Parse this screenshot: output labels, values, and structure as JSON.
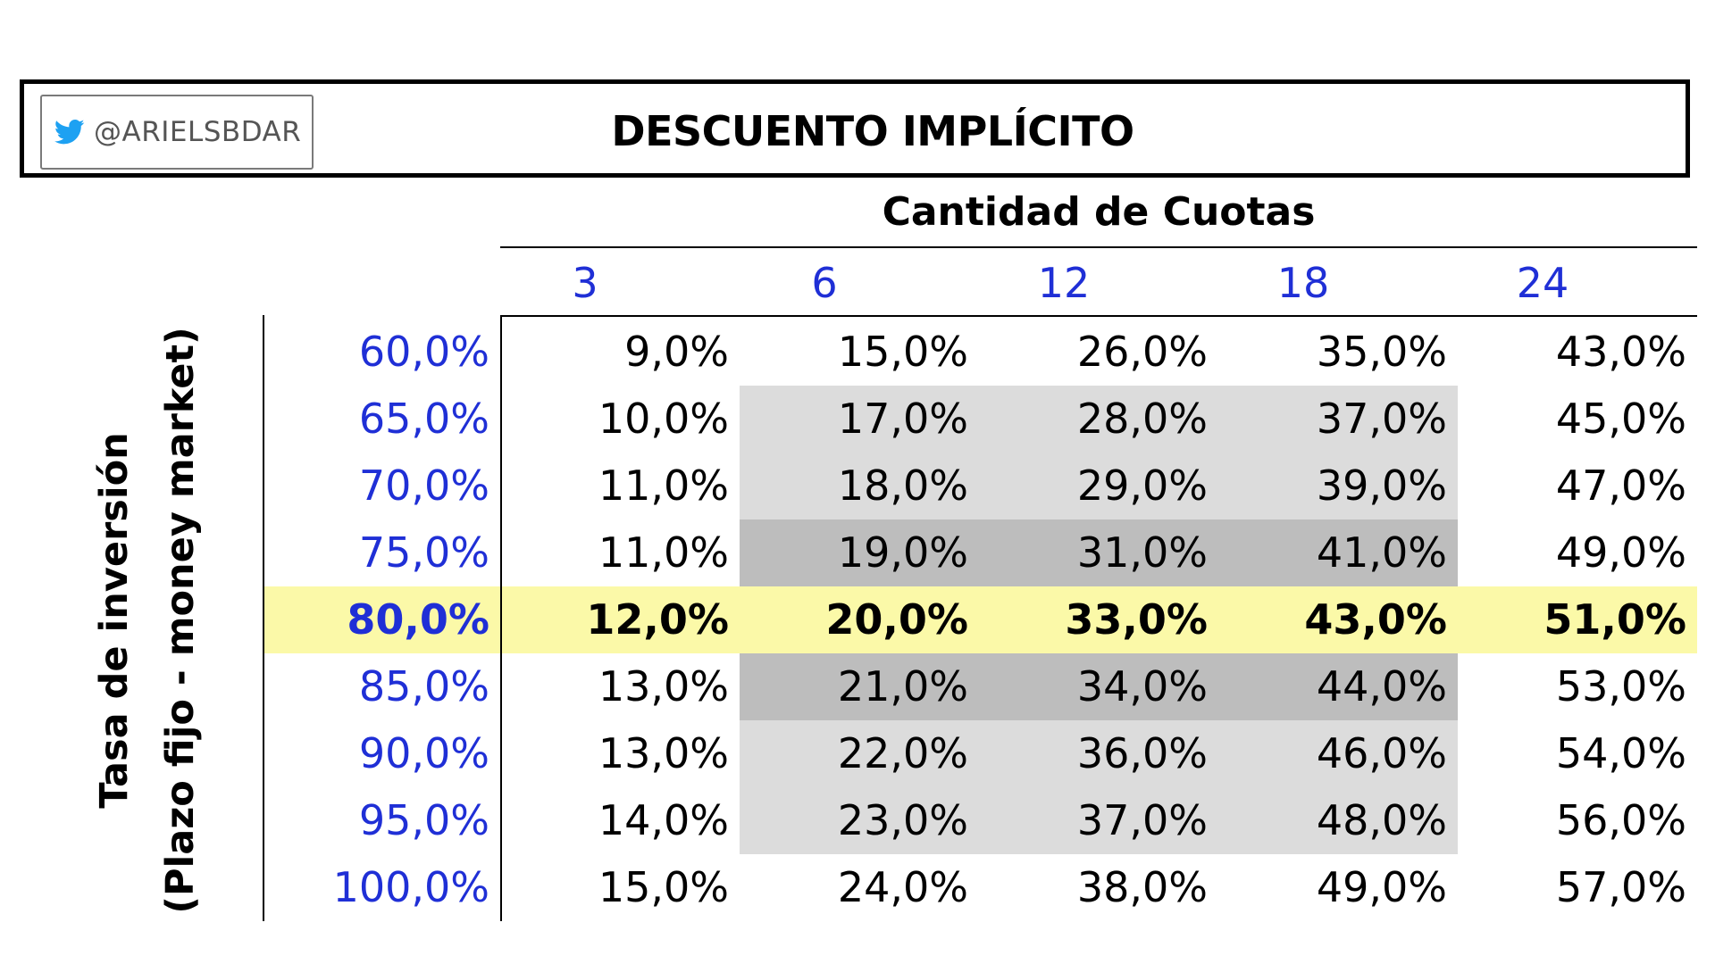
{
  "header": {
    "handle": "@ARIELSBDAR",
    "title": "DESCUENTO IMPLÍCITO"
  },
  "icons": {
    "twitter": "twitter-bird-icon"
  },
  "colors": {
    "accent_blue": "#1f2fd6",
    "highlight_yellow": "#fbf9a8",
    "shade_light": "#dcdcdc",
    "shade_dark": "#bdbdbd",
    "twitter_blue": "#1da1f2"
  },
  "chart_data": {
    "type": "table",
    "title": "DESCUENTO IMPLÍCITO",
    "xlabel": "Cantidad de Cuotas",
    "ylabel_line1": "Tasa de inversión",
    "ylabel_line2": "(Plazo fijo - money market)",
    "columns": [
      "3",
      "6",
      "12",
      "18",
      "24"
    ],
    "rows": [
      "60,0%",
      "65,0%",
      "70,0%",
      "75,0%",
      "80,0%",
      "85,0%",
      "90,0%",
      "95,0%",
      "100,0%"
    ],
    "values": [
      [
        "9,0%",
        "15,0%",
        "26,0%",
        "35,0%",
        "43,0%"
      ],
      [
        "10,0%",
        "17,0%",
        "28,0%",
        "37,0%",
        "45,0%"
      ],
      [
        "11,0%",
        "18,0%",
        "29,0%",
        "39,0%",
        "47,0%"
      ],
      [
        "11,0%",
        "19,0%",
        "31,0%",
        "41,0%",
        "49,0%"
      ],
      [
        "12,0%",
        "20,0%",
        "33,0%",
        "43,0%",
        "51,0%"
      ],
      [
        "13,0%",
        "21,0%",
        "34,0%",
        "44,0%",
        "53,0%"
      ],
      [
        "13,0%",
        "22,0%",
        "36,0%",
        "46,0%",
        "54,0%"
      ],
      [
        "14,0%",
        "23,0%",
        "37,0%",
        "48,0%",
        "56,0%"
      ],
      [
        "15,0%",
        "24,0%",
        "38,0%",
        "49,0%",
        "57,0%"
      ]
    ],
    "highlight_row": "80,0%",
    "light_shaded_rows": [
      "65,0%",
      "70,0%",
      "90,0%",
      "95,0%"
    ],
    "dark_shaded_rows": [
      "75,0%",
      "85,0%"
    ],
    "shaded_columns": [
      "6",
      "12",
      "18"
    ]
  }
}
